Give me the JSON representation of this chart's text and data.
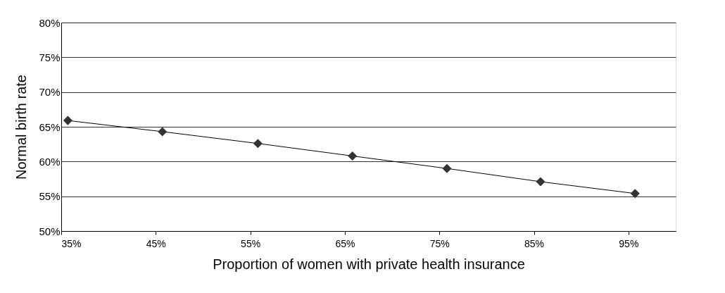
{
  "chart_data": {
    "type": "line",
    "xlabel": "Proportion of women with private health insurance",
    "ylabel": "Normal birth rate",
    "x": [
      35.7,
      45.7,
      55.8,
      65.8,
      75.8,
      85.7,
      95.7
    ],
    "series": [
      {
        "color": "#333333",
        "values": [
          65.9,
          64.3,
          62.6,
          60.8,
          59.0,
          57.1,
          55.4
        ]
      }
    ],
    "xlim": [
      35,
      100
    ],
    "xticks": [
      {
        "value": 35,
        "label": "35%"
      },
      {
        "value": 45,
        "label": "45%"
      },
      {
        "value": 55,
        "label": "55%"
      },
      {
        "value": 65,
        "label": "65%"
      },
      {
        "value": 75,
        "label": "75%"
      },
      {
        "value": 85,
        "label": "85%"
      },
      {
        "value": 95,
        "label": "95%"
      }
    ],
    "ylim": [
      50,
      80
    ],
    "yticks": [
      {
        "value": 50,
        "label": "50%"
      },
      {
        "value": 55,
        "label": "55%"
      },
      {
        "value": 60,
        "label": "60%"
      },
      {
        "value": 65,
        "label": "65%"
      },
      {
        "value": 70,
        "label": "70%"
      },
      {
        "value": 75,
        "label": "75%"
      },
      {
        "value": 80,
        "label": "80%"
      }
    ],
    "grid": "y",
    "marker": "diamond",
    "line_style": "solid"
  }
}
